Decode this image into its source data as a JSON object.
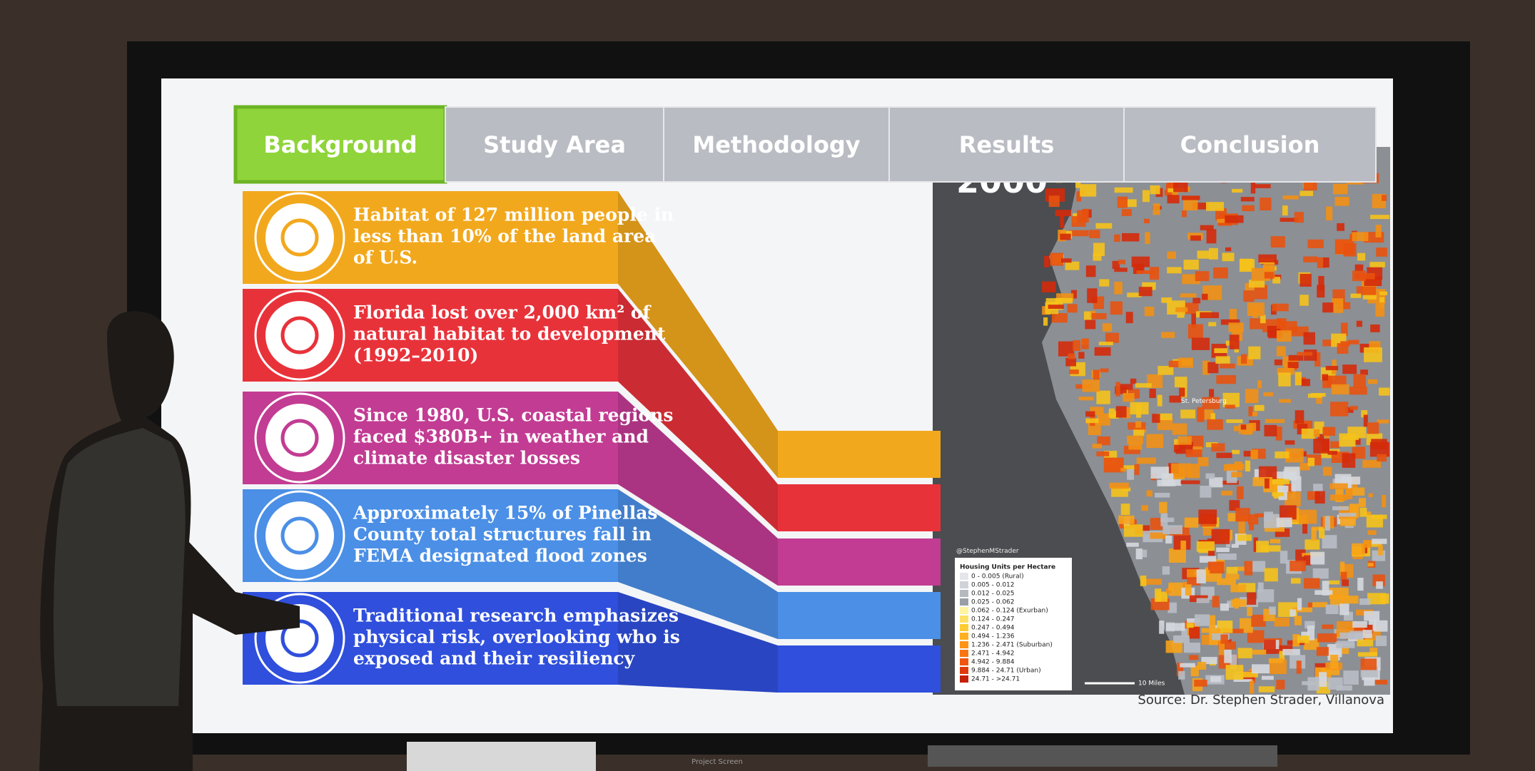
{
  "tabs": [
    {
      "label": "Background",
      "active": true
    },
    {
      "label": "Study Area",
      "active": false
    },
    {
      "label": "Methodology",
      "active": false
    },
    {
      "label": "Results",
      "active": false
    },
    {
      "label": "Conclusion",
      "active": false
    }
  ],
  "items": [
    {
      "color": "#f2a81d",
      "lines": [
        "Habitat of 127 million people in",
        "less than 10% of the land area",
        "of U.S."
      ]
    },
    {
      "color": "#e8323a",
      "lines": [
        "Florida lost over 2,000 km² of",
        "natural habitat to development",
        "(1992–2010)"
      ]
    },
    {
      "color": "#c23c93",
      "lines": [
        "Since 1980, U.S. coastal regions",
        "faced $380B+ in weather and",
        "climate disaster losses"
      ]
    },
    {
      "color": "#4b8fe6",
      "lines": [
        "Approximately 15% of Pinellas",
        "County total structures fall in",
        "FEMA designated flood zones"
      ]
    },
    {
      "color": "#2f4fdc",
      "lines": [
        "Traditional research emphasizes",
        "physical risk, overlooking who is",
        "exposed and their resiliency"
      ]
    }
  ],
  "map": {
    "year": "2000",
    "credit": "@StephenMStrader",
    "city": "St. Petersburg",
    "scale": "10 Miles",
    "legend": {
      "title": "Housing Units per Hectare",
      "entries": [
        {
          "label": "0 - 0.005 (Rural)",
          "color": "#e4e6ea"
        },
        {
          "label": "0.005 - 0.012",
          "color": "#cfd2d8"
        },
        {
          "label": "0.012 - 0.025",
          "color": "#b5b9c0"
        },
        {
          "label": "0.025 - 0.062",
          "color": "#9a9ea6"
        },
        {
          "label": "0.062 - 0.124 (Exurban)",
          "color": "#fff4a0"
        },
        {
          "label": "0.124 - 0.247",
          "color": "#ffe066"
        },
        {
          "label": "0.247 - 0.494",
          "color": "#ffcc33"
        },
        {
          "label": "0.494 - 1.236",
          "color": "#ffb020"
        },
        {
          "label": "1.236 - 2.471 (Suburban)",
          "color": "#ff9416"
        },
        {
          "label": "2.471 - 4.942",
          "color": "#f97512"
        },
        {
          "label": "4.942 - 9.884",
          "color": "#f0560f"
        },
        {
          "label": "9.884 - 24.71 (Urban)",
          "color": "#e03a0c"
        },
        {
          "label": "24.71 - >24.71",
          "color": "#c42008"
        }
      ]
    }
  },
  "source": "Source: Dr. Stephen Strader, Villanova",
  "projector": "Project Screen"
}
